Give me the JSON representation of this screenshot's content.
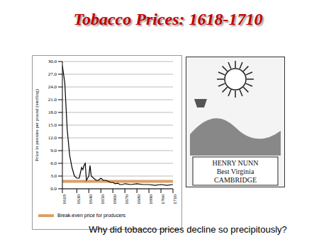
{
  "title": "Tobacco Prices:  1618-1710",
  "caption": "Why did tobacco prices decline so precipitously?",
  "image": {
    "lines": [
      "HENRY NUNN",
      "Best Virginia",
      "CAMBRIDGE"
    ]
  },
  "chart_data": {
    "type": "line",
    "y_label": "Price in pennies per pound (sterling)",
    "x": [
      1618,
      1620,
      1622,
      1624,
      1626,
      1628,
      1630,
      1632,
      1634,
      1635,
      1636,
      1637,
      1638,
      1639,
      1640,
      1641,
      1642,
      1644,
      1646,
      1648,
      1650,
      1652,
      1654,
      1656,
      1658,
      1660,
      1662,
      1664,
      1666,
      1668,
      1670,
      1675,
      1680,
      1685,
      1690,
      1695,
      1700,
      1705,
      1710
    ],
    "values": [
      29,
      25,
      14,
      8,
      5,
      3,
      2.5,
      2.5,
      5,
      4.5,
      5.5,
      6,
      2,
      2.5,
      3,
      5.5,
      3,
      2.5,
      2,
      2,
      2.5,
      2,
      2,
      1.8,
      1.5,
      1.5,
      1.2,
      1.3,
      1,
      1,
      1.2,
      1,
      1.2,
      1,
      1,
      0.8,
      1,
      0.8,
      1
    ],
    "color": "#000000",
    "break_even": {
      "name": "Break-even price for producers",
      "value": 1.75,
      "color": "#d9a066"
    },
    "xlim": [
      1618,
      1710
    ],
    "xticks": [
      1618,
      1630,
      1640,
      1650,
      1660,
      1670,
      1680,
      1690,
      1700,
      1710
    ],
    "ylim": [
      0,
      30
    ],
    "yticks": [
      0,
      3,
      6,
      9,
      12,
      15,
      18,
      21,
      24,
      27,
      30
    ],
    "grid": true
  }
}
